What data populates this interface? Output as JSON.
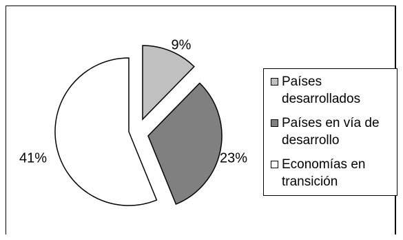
{
  "chart_data": {
    "type": "pie",
    "title": "",
    "series": [
      {
        "values": [
          9,
          23,
          41
        ],
        "labels": [
          "9%",
          "23%",
          "41%"
        ]
      }
    ],
    "categories": [
      "Países desarrollados",
      "Países en vía de desarrollo",
      "Economías en transición"
    ],
    "colors": [
      "#c0c0c0",
      "#808080",
      "#ffffff"
    ],
    "legend_position": "right",
    "exploded": true
  },
  "legend": {
    "items": [
      {
        "label": "Países desarrollados",
        "color": "#c0c0c0"
      },
      {
        "label": "Países en vía de desarrollo",
        "color": "#808080"
      },
      {
        "label": "Economías en transición",
        "color": "#ffffff"
      }
    ]
  }
}
